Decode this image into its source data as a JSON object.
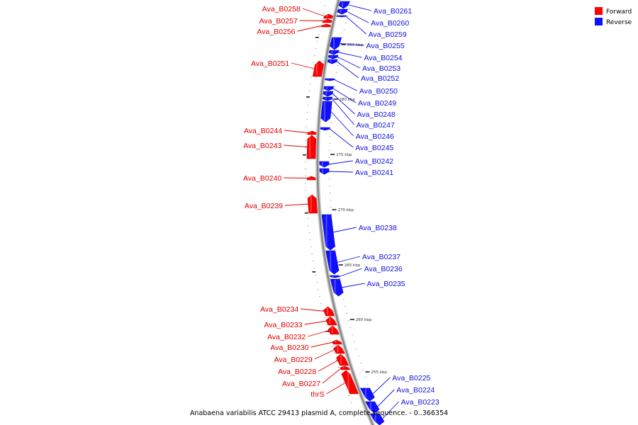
{
  "colors": {
    "forward": "#ff0000",
    "reverse": "#1010ff",
    "backbone": "#888888",
    "forward_label": "#e00000",
    "reverse_label": "#1010e0"
  },
  "legend": [
    {
      "name": "Forward",
      "color": "#ff0000"
    },
    {
      "name": "Reverse",
      "color": "#1010ff"
    }
  ],
  "caption": "Anabaena variabilis ATCC 29413 plasmid A, complete sequence. - 0..366354",
  "kbp_labels": [
    "285 kbp",
    "280 kbp",
    "275 kbp",
    "270 kbp",
    "265 kbp",
    "260 kbp",
    "255 kbp"
  ],
  "genes": [
    {
      "name": "Ava_B0261",
      "strand": "reverse"
    },
    {
      "name": "Ava_B0260",
      "strand": "reverse"
    },
    {
      "name": "Ava_B0259",
      "strand": "reverse"
    },
    {
      "name": "Ava_B0258",
      "strand": "forward"
    },
    {
      "name": "Ava_B0257",
      "strand": "forward"
    },
    {
      "name": "Ava_B0256",
      "strand": "forward"
    },
    {
      "name": "Ava_B0255",
      "strand": "reverse"
    },
    {
      "name": "Ava_B0254",
      "strand": "reverse"
    },
    {
      "name": "Ava_B0253",
      "strand": "reverse"
    },
    {
      "name": "Ava_B0252",
      "strand": "reverse"
    },
    {
      "name": "Ava_B0251",
      "strand": "forward"
    },
    {
      "name": "Ava_B0250",
      "strand": "reverse"
    },
    {
      "name": "Ava_B0249",
      "strand": "reverse"
    },
    {
      "name": "Ava_B0248",
      "strand": "reverse"
    },
    {
      "name": "Ava_B0247",
      "strand": "reverse"
    },
    {
      "name": "Ava_B0246",
      "strand": "reverse"
    },
    {
      "name": "Ava_B0245",
      "strand": "reverse"
    },
    {
      "name": "Ava_B0244",
      "strand": "forward"
    },
    {
      "name": "Ava_B0243",
      "strand": "forward"
    },
    {
      "name": "Ava_B0242",
      "strand": "reverse"
    },
    {
      "name": "Ava_B0241",
      "strand": "reverse"
    },
    {
      "name": "Ava_B0240",
      "strand": "forward"
    },
    {
      "name": "Ava_B0239",
      "strand": "forward"
    },
    {
      "name": "Ava_B0238",
      "strand": "reverse"
    },
    {
      "name": "Ava_B0237",
      "strand": "reverse"
    },
    {
      "name": "Ava_B0236",
      "strand": "reverse"
    },
    {
      "name": "Ava_B0235",
      "strand": "reverse"
    },
    {
      "name": "Ava_B0234",
      "strand": "forward"
    },
    {
      "name": "Ava_B0233",
      "strand": "forward"
    },
    {
      "name": "Ava_B0232",
      "strand": "forward"
    },
    {
      "name": "Ava_B0230",
      "strand": "forward"
    },
    {
      "name": "Ava_B0229",
      "strand": "forward"
    },
    {
      "name": "Ava_B0228",
      "strand": "forward"
    },
    {
      "name": "Ava_B0227",
      "strand": "forward"
    },
    {
      "name": "thrS",
      "strand": "forward"
    },
    {
      "name": "Ava_B0225",
      "strand": "reverse"
    },
    {
      "name": "Ava_B0224",
      "strand": "reverse"
    },
    {
      "name": "Ava_B0223",
      "strand": "reverse"
    }
  ]
}
